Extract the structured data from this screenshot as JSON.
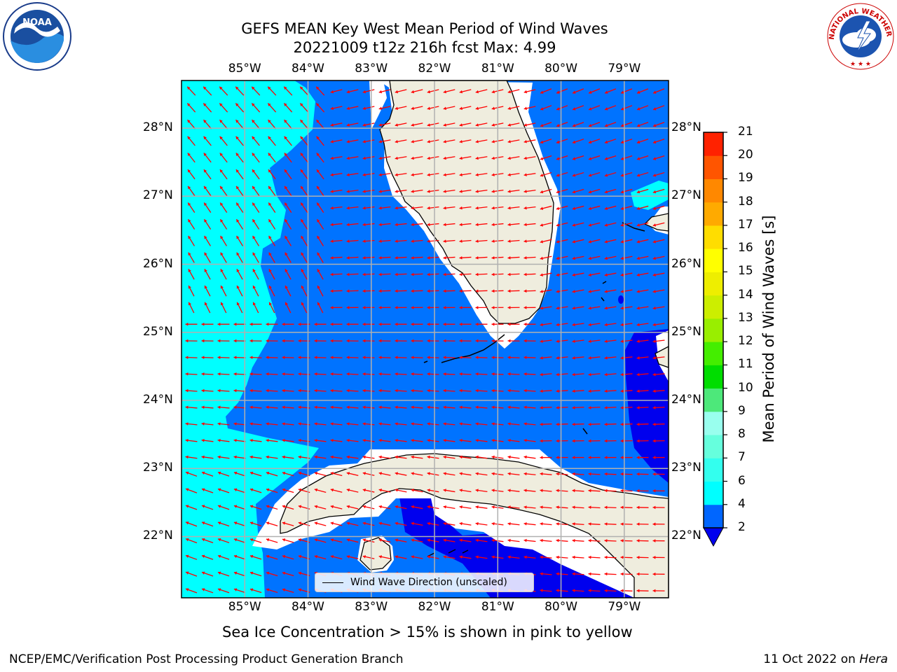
{
  "title": {
    "line1": "GEFS MEAN Key West Mean Period of Wind Waves",
    "line2": "20221009 t12z 216h fcst   Max: 4.99"
  },
  "map": {
    "lon_labels": [
      "85°W",
      "84°W",
      "83°W",
      "82°W",
      "81°W",
      "80°W",
      "79°W"
    ],
    "lat_labels": [
      "28°N",
      "27°N",
      "26°N",
      "25°N",
      "24°N",
      "23°N",
      "22°N"
    ],
    "lon_range": [
      -86,
      -78.3
    ],
    "lat_range": [
      21.1,
      28.7
    ],
    "arrow_color": "#ff0000",
    "land_color": "#efedde",
    "gridlines": true
  },
  "legend": {
    "label": "Wind Wave Direction (unscaled)"
  },
  "colorbar": {
    "label": "Mean Period of Wind Waves [s]",
    "ticks": [
      "2",
      "4",
      "6",
      "7",
      "8",
      "9",
      "10",
      "11",
      "12",
      "13",
      "14",
      "15",
      "16",
      "17",
      "18",
      "19",
      "20",
      "21"
    ],
    "colors": [
      "#0066ff",
      "#00ffff",
      "#33ffee",
      "#66ffdd",
      "#99ffee",
      "#4de87a",
      "#00dd00",
      "#44ee00",
      "#99ee00",
      "#ccee00",
      "#eeee00",
      "#ffff00",
      "#ffdd00",
      "#ffaa00",
      "#ff8800",
      "#ff5500",
      "#ff2200"
    ],
    "extend_color": "#0000ee"
  },
  "colors": {
    "blue": "#0073ff",
    "dark_blue": "#0000ee",
    "cyan": "#00ffff"
  },
  "notes": {
    "ice": "Sea Ice Concentration > 15% is shown in pink to yellow"
  },
  "footer": {
    "left": "NCEP/EMC/Verification Post Processing Product Generation Branch",
    "right_date": "11 Oct 2022 on ",
    "right_host": "Hera"
  },
  "logos": {
    "noaa_text": "NOAA",
    "nws_text": "NATIONAL WEATHER SERVICE"
  }
}
